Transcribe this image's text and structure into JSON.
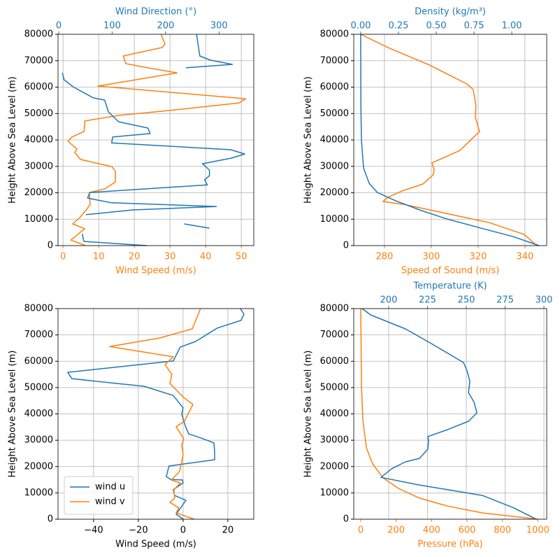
{
  "chart_data": [
    {
      "type": "line",
      "ylabel": "Height Above Sea Level (m)",
      "xlabel": "Wind Speed (m/s)",
      "x2label": "Wind Direction (°)",
      "xlim": [
        -1.4,
        53.5
      ],
      "xticks": [
        0,
        10,
        20,
        30,
        40,
        50
      ],
      "x2lim": [
        -1.3,
        365
      ],
      "x2ticks": [
        0,
        100,
        200,
        300
      ],
      "ylim": [
        0,
        80000
      ],
      "yticks": [
        0,
        10000,
        20000,
        30000,
        40000,
        50000,
        60000,
        70000,
        80000
      ],
      "grid": true,
      "grid_axis": "x",
      "series": [
        {
          "color": "#ff7f0e",
          "axis": "x",
          "x": [
            6.3,
            2.2,
            6.1,
            2.7,
            4.7,
            6.5,
            7.6,
            7.4,
            11.8,
            14.7,
            14.7,
            13.7,
            4.9,
            3.3,
            3.9,
            1.4,
            2.5,
            5.9,
            6.1,
            15.7,
            29.4,
            49.4,
            51.2,
            9.8,
            32,
            23.1,
            17.6,
            16.9,
            27.8,
            28.6,
            27.5
          ],
          "y": [
            0,
            2100,
            6400,
            8200,
            10600,
            13500,
            15600,
            20100,
            21500,
            24100,
            28100,
            29900,
            32600,
            35200,
            36600,
            39500,
            41100,
            43200,
            47200,
            49300,
            51100,
            54000,
            55600,
            60400,
            65400,
            67500,
            68900,
            71800,
            75000,
            76300,
            80000
          ]
        },
        {
          "color": "#1f77b4",
          "axis": "x2",
          "x": [
            165,
            47,
            44,
            null,
            235,
            282,
            null,
            51,
            139,
            295,
            99,
            54,
            58,
            278,
            273,
            282,
            282,
            269,
            323,
            348,
            322,
            99,
            101,
            171,
            167,
            112,
            93,
            86,
            65,
            27,
            10,
            7,
            null,
            238,
            325,
            284,
            264,
            261,
            258
          ],
          "y": [
            0,
            1600,
            4500,
            null,
            8200,
            6600,
            null,
            11700,
            13500,
            14800,
            16200,
            18000,
            20100,
            23000,
            24900,
            26500,
            28600,
            31000,
            33100,
            34700,
            36300,
            38900,
            41100,
            42400,
            44500,
            46900,
            50600,
            55100,
            55900,
            60100,
            62800,
            65400,
            null,
            67300,
            68600,
            70200,
            71800,
            75800,
            80000
          ]
        }
      ]
    },
    {
      "type": "line",
      "ylabel": "Height Above Sea Level (m)",
      "xlabel": "Speed of Sound (m/s)",
      "x2label": "Density (kg/m³)",
      "xlim": [
        266.9,
        349.3
      ],
      "xticks": [
        280,
        300,
        320,
        340
      ],
      "x2lim": [
        -0.046,
        1.231
      ],
      "x2ticks": [
        {
          "value": 0,
          "label": "0.00"
        },
        {
          "value": 0.25,
          "label": "0.25"
        },
        {
          "value": 0.5,
          "label": "0.50"
        },
        {
          "value": 0.75,
          "label": "0.75"
        },
        {
          "value": 1,
          "label": "1.00"
        }
      ],
      "ylim": [
        0,
        80000
      ],
      "yticks": [
        0,
        10000,
        20000,
        30000,
        40000,
        50000,
        60000,
        70000,
        80000
      ],
      "grid": true,
      "grid_axis": "x",
      "series": [
        {
          "color": "#ff7f0e",
          "axis": "x",
          "x": [
            345.1,
            339.7,
            324.8,
            299.4,
            288.4,
            279.4,
            281.5,
            287.5,
            296.4,
            300.9,
            301.2,
            300.3,
            312.2,
            320.6,
            318.8,
            319.1,
            317.9,
            315.2,
            299.4,
            281.5,
            269.9
          ],
          "y": [
            0,
            4200,
            8700,
            13500,
            15600,
            16700,
            18300,
            20700,
            23300,
            26800,
            28900,
            31300,
            36000,
            43200,
            48700,
            53200,
            59100,
            61200,
            68300,
            75000,
            80000
          ]
        },
        {
          "color": "#1f77b4",
          "axis": "x2",
          "x": [
            1.18,
            1.01,
            0.81,
            0.57,
            0.39,
            0.23,
            0.11,
            0.056,
            0.019,
            0.005,
            0.001,
            0
          ],
          "y": [
            0,
            3400,
            6400,
            10100,
            13500,
            17000,
            20100,
            23600,
            29400,
            40000,
            53200,
            80000
          ]
        }
      ]
    },
    {
      "type": "line",
      "ylabel": "Height Above Sea Level (m)",
      "xlabel": "Wind Speed (m/s)",
      "xlim": [
        -55.9,
        31.6
      ],
      "xticks": [
        {
          "value": -40,
          "label": "−40"
        },
        {
          "value": -20,
          "label": "−20"
        },
        0,
        20
      ],
      "ylim": [
        0,
        80000
      ],
      "yticks": [
        0,
        10000,
        20000,
        30000,
        40000,
        50000,
        60000,
        70000,
        80000
      ],
      "grid": true,
      "grid_axis": "x",
      "legend": "lower left",
      "series": [
        {
          "name": "wind u",
          "color": "#1f77b4",
          "axis": "x",
          "x": [
            0,
            -3.1,
            1.25,
            -3.8,
            -4.4,
            0,
            -0.3,
            -5.6,
            -7.5,
            -6.3,
            14.1,
            14.1,
            13.8,
            8.1,
            2.5,
            0.9,
            -0.6,
            0,
            -4.4,
            -17.5,
            -30,
            -49.7,
            -51.6,
            -4.4,
            -1.25,
            5.6,
            15.3,
            25.9,
            27.2,
            25.6
          ],
          "y": [
            0,
            1900,
            7200,
            9000,
            11200,
            13800,
            14900,
            15100,
            16200,
            20200,
            22600,
            25500,
            29000,
            30800,
            32400,
            35600,
            39900,
            42300,
            47000,
            50500,
            51600,
            53400,
            55800,
            60100,
            65400,
            67500,
            72600,
            75500,
            77900,
            80000
          ]
        },
        {
          "name": "wind v",
          "color": "#ff7f0e",
          "axis": "x",
          "x": [
            5,
            -3.1,
            -1.9,
            -5.9,
            -3.8,
            -4.1,
            -1.25,
            -5.3,
            -1.6,
            -0.6,
            0,
            -0.6,
            0.3,
            -3.1,
            0.6,
            4.4,
            0.3,
            -5.9,
            -5,
            -8.1,
            -4.4,
            -32.8,
            -10.6,
            4.1,
            7.8
          ],
          "y": [
            0,
            2400,
            4300,
            6400,
            8000,
            11200,
            13800,
            14900,
            18100,
            21800,
            24500,
            28200,
            30600,
            35100,
            37200,
            43600,
            46200,
            51600,
            55000,
            58700,
            61700,
            65600,
            68800,
            72300,
            80000
          ]
        }
      ]
    },
    {
      "type": "line",
      "ylabel": "Height Above Sea Level (m)",
      "xlabel": "Pressure (hPa)",
      "x2label": "Temperature (K)",
      "xlim": [
        -39.5,
        1050
      ],
      "xticks": [
        0,
        200,
        400,
        600,
        800,
        1000
      ],
      "x2lim": [
        177.5,
        301.8
      ],
      "x2ticks": [
        200,
        225,
        250,
        275,
        300
      ],
      "ylim": [
        0,
        80000
      ],
      "yticks": [
        0,
        10000,
        20000,
        30000,
        40000,
        50000,
        60000,
        70000,
        80000
      ],
      "grid": true,
      "grid_axis": "x2",
      "series": [
        {
          "color": "#ff7f0e",
          "axis": "x",
          "x": [
            1000,
            687,
            490,
            332,
            213,
            126,
            67,
            32,
            12,
            4,
            0
          ],
          "y": [
            0,
            2400,
            5000,
            8000,
            11700,
            15700,
            21000,
            27100,
            37700,
            51000,
            80000
          ]
        },
        {
          "color": "#1f77b4",
          "axis": "x2",
          "x": [
            295,
            280.6,
            260.4,
            219.8,
            195,
            201.8,
            210.8,
            219.8,
            225.2,
            225.7,
            225.2,
            237.8,
            251.4,
            256.8,
            255,
            251.4,
            252.3,
            250.5,
            248.2,
            226.6,
            210.8,
            188.3,
            182.9
          ],
          "y": [
            0,
            4300,
            9000,
            13000,
            15900,
            19100,
            21800,
            23100,
            26600,
            29800,
            31400,
            34000,
            37200,
            40400,
            44400,
            48100,
            52400,
            56300,
            59500,
            67000,
            72300,
            77600,
            80000
          ]
        }
      ]
    }
  ]
}
